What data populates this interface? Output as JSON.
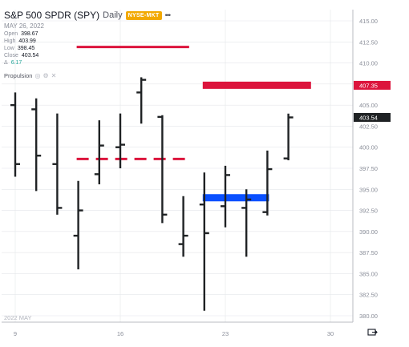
{
  "header": {
    "symbol": "S&P 500 SPDR (SPY)",
    "interval": "Daily",
    "exchange_badge": "NYSE-MKT",
    "more_label": "•••",
    "date": "MAY 26, 2022",
    "ohlc": [
      {
        "label": "Open",
        "value": "398.67"
      },
      {
        "label": "High",
        "value": "403.99"
      },
      {
        "label": "Low",
        "value": "398.45"
      },
      {
        "label": "Close",
        "value": "403.54"
      },
      {
        "label": "Δ",
        "value": "6.17"
      }
    ]
  },
  "study": {
    "name": "Propulsion",
    "icons": [
      "eye-icon",
      "gear-icon",
      "close-icon"
    ]
  },
  "watermark": "2022 MAY",
  "colors": {
    "bar": "#1f2224",
    "red": "#dc143c",
    "blue": "#0a50ff",
    "grid": "#e4e6ea",
    "axis": "#b8bbc2"
  },
  "chart_data": {
    "type": "ohlc",
    "x_ticks": [
      {
        "label": "9",
        "index": 0
      },
      {
        "label": "16",
        "index": 5
      },
      {
        "label": "23",
        "index": 10
      },
      {
        "label": "30",
        "index": 15
      }
    ],
    "y_ticks": [
      "415.00",
      "412.50",
      "410.00",
      "407.50",
      "405.00",
      "402.50",
      "400.00",
      "397.50",
      "395.00",
      "392.50",
      "390.00",
      "387.50",
      "385.00",
      "382.50",
      "380.00"
    ],
    "ylim": [
      380.0,
      415.0
    ],
    "price_labels": [
      {
        "label": "407.35",
        "value": 407.35,
        "color": "#dc143c"
      },
      {
        "label": "403.54",
        "value": 403.54,
        "color": "#1f2224"
      }
    ],
    "bars": [
      {
        "i": 0,
        "open": 405.0,
        "high": 406.5,
        "low": 396.5,
        "close": 398.0
      },
      {
        "i": 1,
        "open": 404.5,
        "high": 405.8,
        "low": 394.8,
        "close": 399.0
      },
      {
        "i": 2,
        "open": 398.0,
        "high": 404.0,
        "low": 392.0,
        "close": 392.8
      },
      {
        "i": 3,
        "open": 389.5,
        "high": 396.0,
        "low": 385.5,
        "close": 392.5
      },
      {
        "i": 4,
        "open": 396.8,
        "high": 403.2,
        "low": 395.6,
        "close": 400.2
      },
      {
        "i": 5,
        "open": 400.0,
        "high": 404.0,
        "low": 397.5,
        "close": 400.3
      },
      {
        "i": 6,
        "open": 406.5,
        "high": 408.3,
        "low": 402.8,
        "close": 408.0
      },
      {
        "i": 7,
        "open": 403.6,
        "high": 403.8,
        "low": 391.0,
        "close": 392.0
      },
      {
        "i": 8,
        "open": 388.5,
        "high": 394.2,
        "low": 387.0,
        "close": 389.5
      },
      {
        "i": 9,
        "open": 393.2,
        "high": 397.0,
        "low": 380.6,
        "close": 389.8
      },
      {
        "i": 10,
        "open": 393.0,
        "high": 397.8,
        "low": 390.5,
        "close": 396.7
      },
      {
        "i": 11,
        "open": 392.8,
        "high": 395.0,
        "low": 387.0,
        "close": 393.8
      },
      {
        "i": 12,
        "open": 392.3,
        "high": 399.6,
        "low": 391.9,
        "close": 397.4
      },
      {
        "i": 13,
        "open": 398.67,
        "high": 403.99,
        "low": 398.45,
        "close": 403.54
      }
    ],
    "levels": [
      {
        "color": "#dc143c",
        "value": 411.9,
        "from": 3,
        "to": 8.2,
        "style": "solid"
      },
      {
        "color": "#dc143c",
        "value": 398.6,
        "from": 3,
        "to": 8.2,
        "style": "dashed"
      },
      {
        "color": "#dc143c",
        "value": 407.35,
        "from": 9,
        "to": 14.0,
        "style": "solid"
      },
      {
        "color": "#0a50ff",
        "value": 394.0,
        "from": 9,
        "to": 12.0,
        "style": "solid"
      }
    ]
  }
}
